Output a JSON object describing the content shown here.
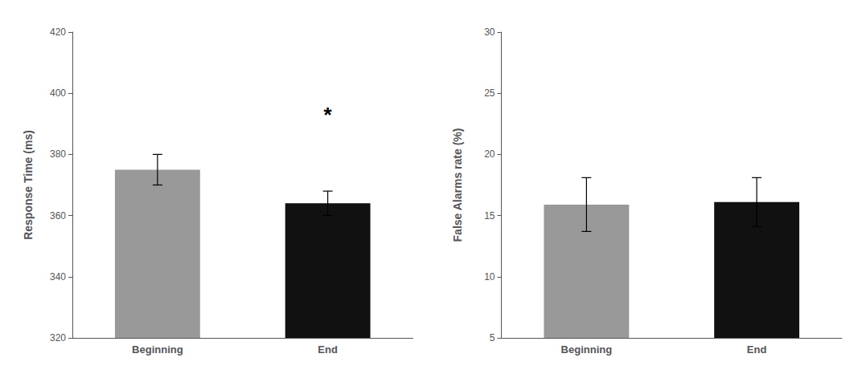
{
  "chart_data": [
    {
      "type": "bar",
      "categories": [
        "Beginning",
        "End"
      ],
      "values": [
        375,
        364
      ],
      "errors": [
        5,
        4
      ],
      "colors": [
        "#999999",
        "#111111"
      ],
      "ylabel": "Response Time (ms)",
      "ylim": [
        320,
        420
      ],
      "yticks": [
        320,
        340,
        360,
        380,
        400,
        420
      ],
      "grid": false,
      "annotations": [
        {
          "text": "*",
          "x": "End",
          "y": 393
        }
      ]
    },
    {
      "type": "bar",
      "categories": [
        "Beginning",
        "End"
      ],
      "values": [
        15.9,
        16.1
      ],
      "errors": [
        2.2,
        2.0
      ],
      "colors": [
        "#999999",
        "#111111"
      ],
      "ylabel": "False Alarms rate (%)",
      "ylim": [
        5,
        30
      ],
      "yticks": [
        5,
        10,
        15,
        20,
        25,
        30
      ],
      "grid": false
    }
  ]
}
